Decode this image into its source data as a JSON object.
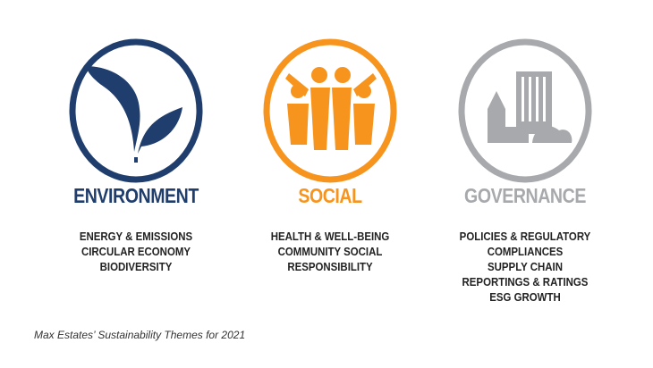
{
  "colors": {
    "environment": "#1f3e6d",
    "social": "#f7941d",
    "governance": "#a7a9ac"
  },
  "themes": [
    {
      "title": "ENVIRONMENT",
      "icon": "leaf-icon",
      "items": [
        "ENERGY & EMISSIONS",
        "CIRCULAR ECONOMY",
        "BIODIVERSITY"
      ]
    },
    {
      "title": "SOCIAL",
      "icon": "people-icon",
      "items": [
        "HEALTH & WELL-BEING",
        "COMMUNITY SOCIAL",
        "RESPONSIBILITY"
      ]
    },
    {
      "title": "GOVERNANCE",
      "icon": "buildings-icon",
      "items": [
        "POLICIES & REGULATORY",
        "COMPLIANCES",
        "SUPPLY CHAIN",
        "REPORTINGS & RATINGS",
        "ESG GROWTH"
      ]
    }
  ],
  "caption": "Max Estates’ Sustainability Themes for 2021"
}
